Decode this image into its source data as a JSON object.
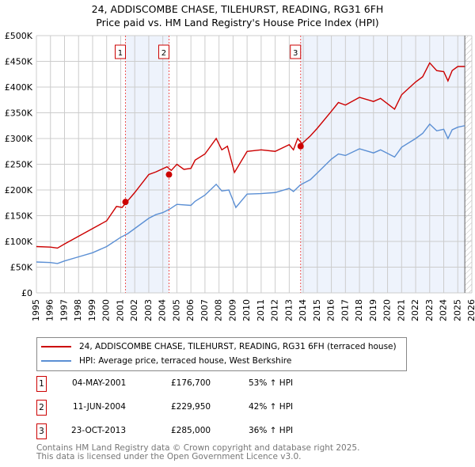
{
  "chart_data": {
    "type": "line",
    "title": "24, ADDISCOMBE CHASE, TILEHURST, READING, RG31 6FH",
    "subtitle": "Price paid vs. HM Land Registry's House Price Index (HPI)",
    "xlim": [
      1995,
      2026
    ],
    "ylim": [
      0,
      500000
    ],
    "x_ticks": [
      "1995",
      "1996",
      "1997",
      "1998",
      "1999",
      "2000",
      "2001",
      "2002",
      "2003",
      "2004",
      "2005",
      "2006",
      "2007",
      "2008",
      "2009",
      "2010",
      "2011",
      "2012",
      "2013",
      "2014",
      "2015",
      "2016",
      "2017",
      "2018",
      "2019",
      "2020",
      "2021",
      "2022",
      "2023",
      "2024",
      "2025",
      "2026"
    ],
    "y_ticks": [
      "£0",
      "£50K",
      "£100K",
      "£150K",
      "£200K",
      "£250K",
      "£300K",
      "£350K",
      "£400K",
      "£450K",
      "£500K"
    ],
    "grid": true,
    "series": [
      {
        "name": "24, ADDISCOMBE CHASE, TILEHURST, READING, RG31 6FH (terraced house)",
        "color": "#cc0000",
        "x": [
          1995,
          1996,
          1996.5,
          1997,
          1998,
          1999,
          2000,
          2000.7,
          2001.1,
          2002,
          2003,
          2003.5,
          2004.3,
          2004.6,
          2005,
          2005.5,
          2006,
          2006.3,
          2007,
          2007.8,
          2008.2,
          2008.6,
          2009.1,
          2010,
          2011,
          2012,
          2013,
          2013.3,
          2013.6,
          2013.9,
          2014.5,
          2015,
          2016,
          2016.5,
          2017,
          2018,
          2019,
          2019.5,
          2020.5,
          2021,
          2022,
          2022.5,
          2023,
          2023.5,
          2024,
          2024.3,
          2024.6,
          2025,
          2025.5
        ],
        "y": [
          90000,
          89000,
          87000,
          95000,
          110000,
          125000,
          140000,
          168000,
          166000,
          195000,
          230000,
          235000,
          245000,
          238000,
          250000,
          240000,
          242000,
          258000,
          270000,
          300000,
          278000,
          285000,
          234000,
          275000,
          278000,
          275000,
          288000,
          278000,
          300000,
          290000,
          305000,
          320000,
          353000,
          370000,
          365000,
          380000,
          372000,
          378000,
          357000,
          385000,
          410000,
          420000,
          447000,
          432000,
          430000,
          412000,
          432000,
          440000,
          440000
        ]
      },
      {
        "name": "HPI: Average price, terraced house, West Berkshire",
        "color": "#5b8fd4",
        "x": [
          1995,
          1996,
          1996.5,
          1997,
          1998,
          1999,
          2000,
          2001,
          2001.5,
          2002,
          2003,
          2003.5,
          2004,
          2004.5,
          2005,
          2006,
          2006.3,
          2007,
          2007.8,
          2008.2,
          2008.7,
          2009.2,
          2010,
          2011,
          2012,
          2013,
          2013.3,
          2013.8,
          2014.5,
          2015,
          2016,
          2016.5,
          2017,
          2018,
          2019,
          2019.5,
          2020.5,
          2021,
          2022,
          2022.5,
          2023,
          2023.5,
          2024,
          2024.3,
          2024.6,
          2025,
          2025.5
        ],
        "y": [
          60000,
          59000,
          57000,
          62000,
          70000,
          78000,
          90000,
          108000,
          115000,
          125000,
          145000,
          152000,
          156000,
          163000,
          172000,
          170000,
          178000,
          190000,
          211000,
          198000,
          200000,
          166000,
          192000,
          193000,
          195000,
          203000,
          197000,
          210000,
          220000,
          233000,
          260000,
          270000,
          267000,
          280000,
          272000,
          278000,
          264000,
          283000,
          300000,
          310000,
          328000,
          315000,
          318000,
          300000,
          317000,
          322000,
          325000
        ]
      }
    ],
    "sales": [
      {
        "num": "1",
        "date": "04-MAY-2001",
        "x": 2001.34,
        "price": "£176,700",
        "value": 176700,
        "hpi": "53% ↑ HPI"
      },
      {
        "num": "2",
        "date": "11-JUN-2004",
        "x": 2004.44,
        "price": "£229,950",
        "value": 229950,
        "hpi": "42% ↑ HPI"
      },
      {
        "num": "3",
        "date": "23-OCT-2013",
        "x": 2013.81,
        "price": "£285,000",
        "value": 285000,
        "hpi": "36% ↑ HPI"
      }
    ],
    "data_end": 2025.5
  },
  "footer": [
    "Contains HM Land Registry data © Crown copyright and database right 2025.",
    "This data is licensed under the Open Government Licence v3.0."
  ]
}
